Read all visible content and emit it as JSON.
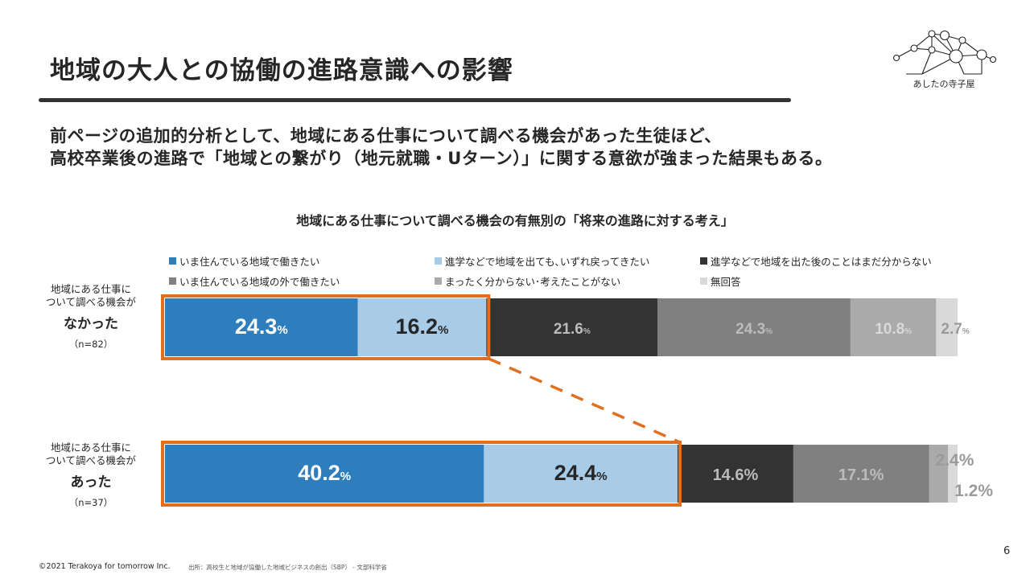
{
  "slide": {
    "title": "地域の大人との協働の進路意識への影響",
    "lead_line1": "前ページの追加的分析として、地域にある仕事について調べる機会があった生徒ほど、",
    "lead_line2": "高校卒業後の進路で「地域との繋がり（地元就職・Uターン）」に関する意欲が強まった結果もある。",
    "logo_text": "あしたの寺子屋",
    "footer_copyright": "©2021 Terakoya for tomorrow Inc.",
    "footer_source": "出所：高校生と地域が協働した地域ビジネスの創出（SBP） - 文部科学省",
    "page_number": "6"
  },
  "chart_data": {
    "type": "bar",
    "orientation": "horizontal",
    "stacked": true,
    "normalized": true,
    "title": "地域にある仕事について調べる機会の有無別の「将来の進路に対する考え」",
    "unit": "%",
    "xlim": [
      0,
      100
    ],
    "categories": [
      {
        "line1": "地域にある仕事に",
        "line2": "ついて調べる機会が",
        "line3": "なかった",
        "n": "（n=82）"
      },
      {
        "line1": "地域にある仕事に",
        "line2": "ついて調べる機会が",
        "line3": "あった",
        "n": "（n=37）"
      }
    ],
    "series": [
      {
        "name": "いま住んでいる地域で働きたい",
        "color": "#2e7ebd",
        "values": [
          24.3,
          40.2
        ]
      },
      {
        "name": "進学などで地域を出ても､いずれ戻ってきたい",
        "color": "#a8cbe8",
        "values": [
          16.2,
          24.4
        ]
      },
      {
        "name": "進学などで地域を出た後のことはまだ分からない",
        "color": "#333333",
        "values": [
          21.6,
          14.6
        ]
      },
      {
        "name": "いま住んでいる地域の外で働きたい",
        "color": "#808080",
        "values": [
          24.3,
          17.1
        ]
      },
      {
        "name": "まったく分からない･考えたことがない",
        "color": "#aaaaaa",
        "values": [
          10.8,
          2.4
        ]
      },
      {
        "name": "無回答",
        "color": "#d9d9d9",
        "values": [
          2.7,
          1.2
        ]
      }
    ],
    "labels": [
      [
        "24.3",
        "16.2",
        "21.6",
        "24.3",
        "10.8",
        "2.7"
      ],
      [
        "40.2",
        "24.4",
        "14.6%",
        "17.1%",
        "2.4%",
        "1.2%"
      ]
    ],
    "highlight": {
      "color": "#e07020",
      "series_indices": [
        0,
        1
      ],
      "connector": "dashed"
    }
  }
}
